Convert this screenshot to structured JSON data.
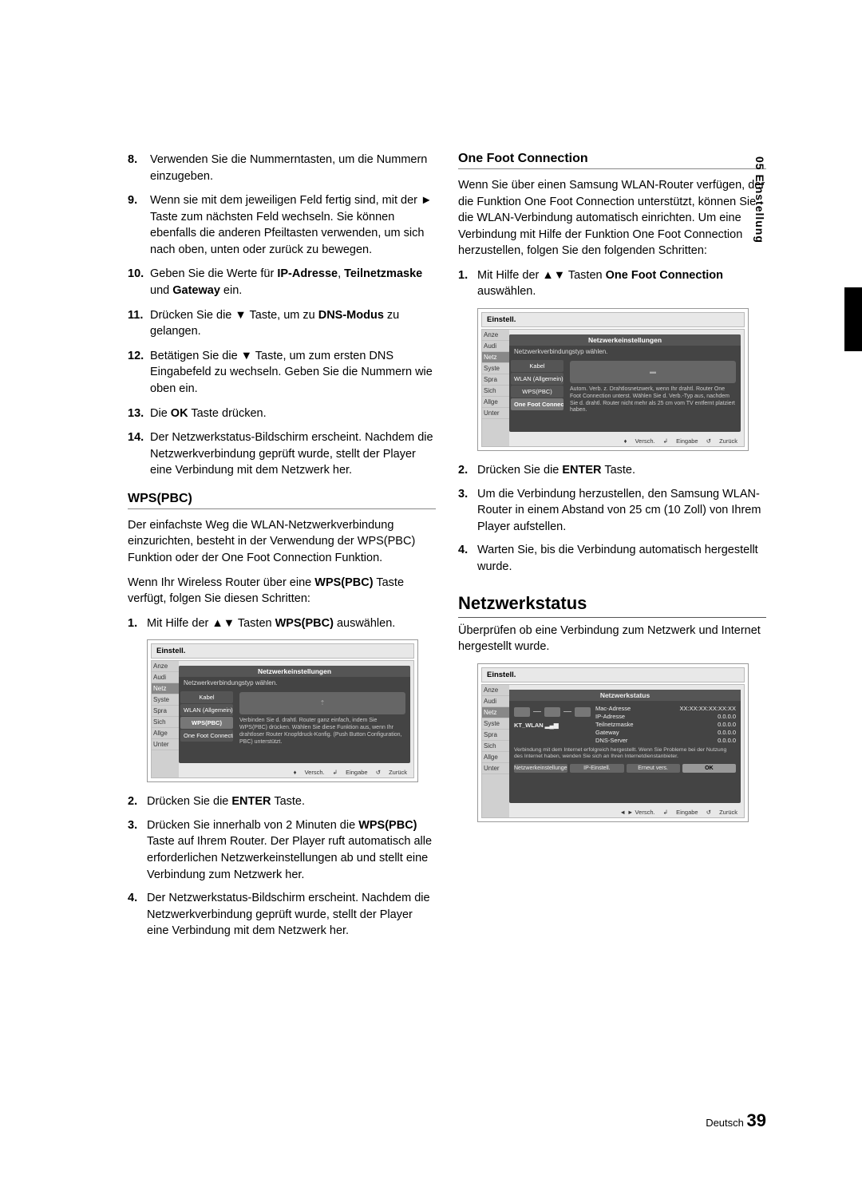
{
  "side_tab": "05  Einstellung",
  "left": {
    "items8_14": [
      {
        "n": "8.",
        "t": "Verwenden Sie die Nummerntasten, um die Nummern einzugeben."
      },
      {
        "n": "9.",
        "t": "Wenn sie mit dem jeweiligen Feld fertig sind, mit der ► Taste zum nächsten Feld wechseln. Sie können ebenfalls die anderen Pfeiltasten verwenden, um sich nach oben, unten oder zurück zu bewegen."
      },
      {
        "n": "10.",
        "t_html": "Geben Sie die Werte für <b>IP-Adresse</b>, <b>Teilnetzmaske</b> und <b>Gateway</b> ein."
      },
      {
        "n": "11.",
        "t_html": "Drücken Sie die ▼ Taste, um zu <b>DNS-Modus</b> zu gelangen."
      },
      {
        "n": "12.",
        "t": "Betätigen Sie die ▼ Taste, um zum ersten DNS Eingabefeld zu wechseln. Geben Sie die Nummern wie oben ein."
      },
      {
        "n": "13.",
        "t_html": "Die <b>OK</b> Taste drücken."
      },
      {
        "n": "14.",
        "t": "Der Netzwerkstatus-Bildschirm erscheint. Nachdem die Netzwerkverbindung geprüft wurde, stellt der Player eine Verbindung mit dem Netzwerk her."
      }
    ],
    "wps_heading": "WPS(PBC)",
    "wps_p1": "Der einfachste Weg die WLAN-Netzwerkverbindung einzurichten, besteht in der Verwendung der WPS(PBC) Funktion oder der One Foot Connection Funktion.",
    "wps_p2_html": "Wenn Ihr Wireless Router über eine <b>WPS(PBC)</b> Taste verfügt, folgen Sie diesen Schritten:",
    "wps_steps": [
      {
        "n": "1.",
        "t_html": "Mit Hilfe der ▲▼ Tasten <b>WPS(PBC)</b> auswählen."
      },
      {
        "n": "2.",
        "t_html": "Drücken Sie die <b>ENTER</b> Taste."
      },
      {
        "n": "3.",
        "t_html": "Drücken Sie innerhalb von 2 Minuten die <b>WPS(PBC)</b> Taste auf Ihrem Router. Der Player ruft automatisch alle erforderlichen Netzwerkeinstellungen ab und stellt eine Verbindung zum Netzwerk her."
      },
      {
        "n": "4.",
        "t": "Der Netzwerkstatus-Bildschirm erscheint. Nachdem die Netzwerkverbindung geprüft wurde, stellt der Player eine Verbindung mit dem Netzwerk her."
      }
    ]
  },
  "right": {
    "ofc_heading": "One Foot Connection",
    "ofc_p1": "Wenn Sie über einen Samsung WLAN-Router verfügen, der die Funktion One Foot Connection unterstützt, können Sie die WLAN-Verbindung automatisch einrichten. Um eine Verbindung mit Hilfe der Funktion One Foot Connection herzustellen, folgen Sie den folgenden Schritten:",
    "ofc_steps_a": [
      {
        "n": "1.",
        "t_html": "Mit Hilfe der ▲▼ Tasten <b>One Foot Connection</b> auswählen."
      }
    ],
    "ofc_steps_b": [
      {
        "n": "2.",
        "t_html": "Drücken Sie die <b>ENTER</b> Taste."
      },
      {
        "n": "3.",
        "t": "Um die Verbindung herzustellen, den Samsung WLAN-Router in einem Abstand von 25 cm (10 Zoll) von Ihrem Player aufstellen."
      },
      {
        "n": "4.",
        "t": "Warten Sie, bis die Verbindung automatisch hergestellt wurde."
      }
    ],
    "netstatus_heading": "Netzwerkstatus",
    "netstatus_p1": "Überprüfen ob eine Verbindung zum Netzwerk und Internet hergestellt wurde."
  },
  "screenshot_common": {
    "outer_title": "Einstell.",
    "sidebar": [
      "Anze",
      "Audi",
      "Netz",
      "Syste",
      "Spra",
      "Sich",
      "Allge",
      "Unter"
    ],
    "sidebar_hl_index": 2,
    "footer_move": "Versch.",
    "footer_enter": "Eingabe",
    "footer_return": "Zurück"
  },
  "screenshot_wps": {
    "modal_title": "Netzwerkeinstellungen",
    "modal_sub": "Netzwerkverbindungstyp wählen.",
    "list": [
      "Kabel",
      "WLAN (Allgemein)",
      "WPS(PBC)",
      "One Foot Connection"
    ],
    "list_sel_index": 2,
    "desc": "Verbinden Sie d. drahtl. Router ganz einfach, indem Sie WPS(PBC) drücken. Wählen Sie diese Funktion aus, wenn Ihr drahtloser Router Knopfdruck-Konfig. (Push Button Configuration, PBC) unterstützt.",
    "imgbox_label": "⇡"
  },
  "screenshot_ofc": {
    "modal_title": "Netzwerkeinstellungen",
    "modal_sub": "Netzwerkverbindungstyp wählen.",
    "list": [
      "Kabel",
      "WLAN (Allgemein)",
      "WPS(PBC)",
      "One Foot Connection"
    ],
    "list_sel_index": 3,
    "desc": "Autom. Verb. z. Drahtlosnetzwerk, wenn Ihr drahtl. Router One Foot Connection unterst. Wählen Sie d. Verb.-Typ aus, nachdem Sie d. drahtl. Router nicht mehr als 25 cm vom TV entfernt platziert haben.",
    "imgbox_label": "▬"
  },
  "screenshot_status": {
    "title": "Netzwerkstatus",
    "ssid": "KT_WLAN",
    "rows": [
      {
        "k": "Mac-Adresse",
        "v": "XX:XX:XX:XX:XX:XX"
      },
      {
        "k": "IP-Adresse",
        "v": "0.0.0.0"
      },
      {
        "k": "Teilnetzmaske",
        "v": "0.0.0.0"
      },
      {
        "k": "Gateway",
        "v": "0.0.0.0"
      },
      {
        "k": "DNS-Server",
        "v": "0.0.0.0"
      }
    ],
    "msg": "Verbindung mit dem Internet erfolgreich hergestellt.\nWenn Sie Probleme bei der Nutzung des Internet haben, wenden Sie sich an Ihren Internetdienstanbieter.",
    "buttons": [
      "Netzwerkeinstellungen",
      "IP-Einstell.",
      "Erneut vers.",
      "OK"
    ],
    "ok_index": 3,
    "footer_move": "◄ ► Versch.",
    "footer_enter": "Eingabe",
    "footer_return": "Zurück"
  },
  "page_footer": {
    "lang": "Deutsch",
    "num": "39"
  },
  "colors": {
    "text": "#000000",
    "scr_bg": "#e8e8e8",
    "scr_modal_bg": "#444444",
    "scr_sidebar_bg": "#d0d0d0",
    "scr_list_bg": "#555555",
    "scr_list_sel": "#777777"
  }
}
